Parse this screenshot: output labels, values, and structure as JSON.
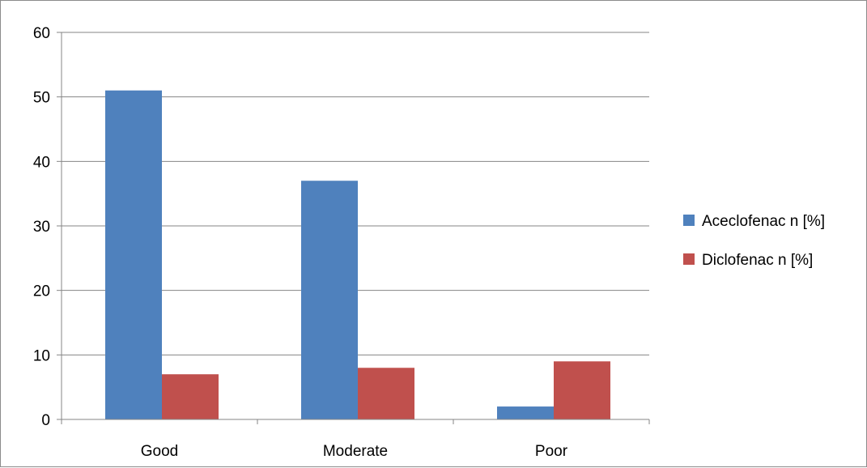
{
  "chart_data": {
    "type": "bar",
    "categories": [
      "Good",
      "Moderate",
      "Poor"
    ],
    "series": [
      {
        "name": "Aceclofenac n [%]",
        "values": [
          51,
          37,
          2
        ],
        "color": "#4f81bd"
      },
      {
        "name": "Diclofenac n [%]",
        "values": [
          7,
          8,
          9
        ],
        "color": "#c0504d"
      }
    ],
    "title": "",
    "xlabel": "",
    "ylabel": "",
    "ylim": [
      0,
      60
    ],
    "yticks": [
      "0",
      "10",
      "20",
      "30",
      "40",
      "50",
      "60"
    ],
    "grid": true,
    "legend": "right"
  }
}
